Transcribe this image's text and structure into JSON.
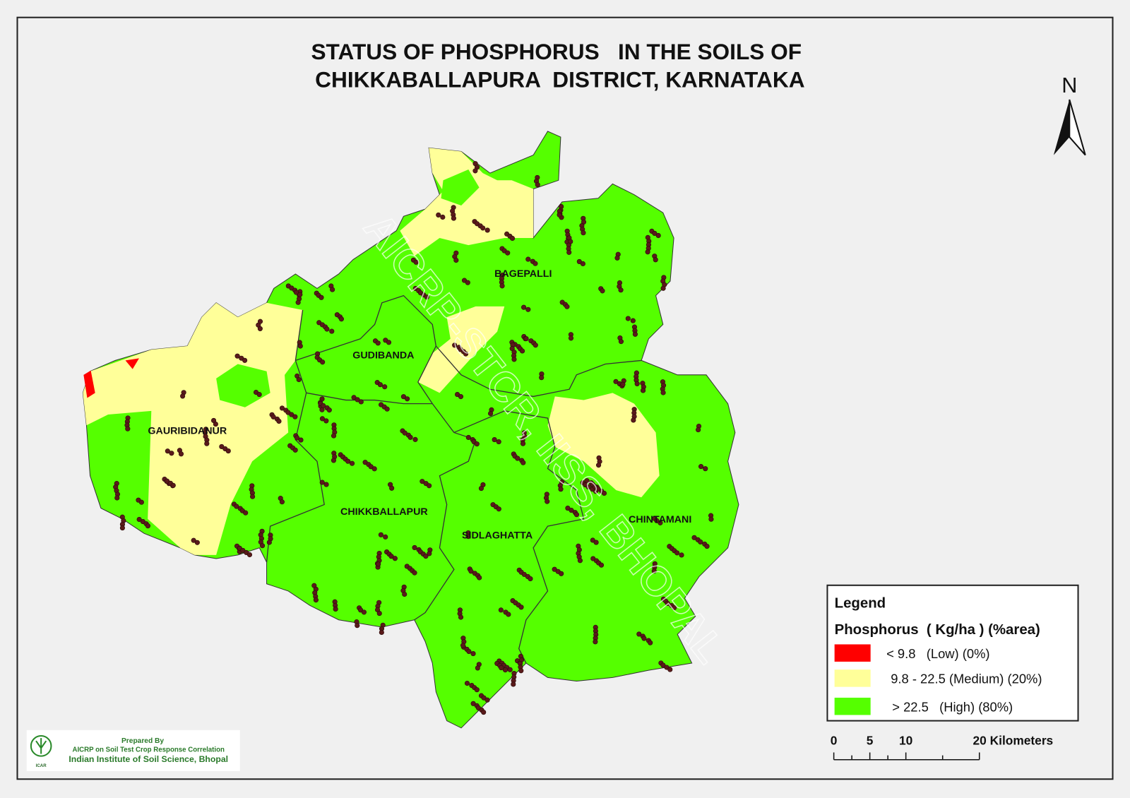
{
  "title": [
    "STATUS OF PHOSPHORUS   IN THE SOILS OF",
    "CHIKKABALLAPURA  DISTRICT, KARNATAKA"
  ],
  "north": "N",
  "watermark": "AICRP-STCR, IISS, BHOPAL",
  "taluks": [
    "BAGEPALLI",
    "GUDIBANDA",
    "GAURIBIDANUR",
    "CHIKKBALLAPUR",
    "SIDLAGHATTA",
    "CHINTAMANI"
  ],
  "legend": {
    "title": "Legend",
    "subtitle": "Phosphorus  ( Kg/ha ) (%area)",
    "items": [
      {
        "label": "< 9.8   (Low) (0%)",
        "color": "#ff0000"
      },
      {
        "label": "9.8 - 22.5 (Medium) (20%)",
        "color": "#ffff99"
      },
      {
        "label": "> 22.5   (High) (80%)",
        "color": "#55ff00"
      }
    ]
  },
  "scale_bar": [
    "0",
    "5",
    "10",
    "20 Kilometers"
  ],
  "credits": [
    "Prepared By",
    "AICRP on Soil Test Crop Response Correlation",
    "Indian Institute of Soil Science, Bhopal"
  ],
  "logo": "ICAR"
}
